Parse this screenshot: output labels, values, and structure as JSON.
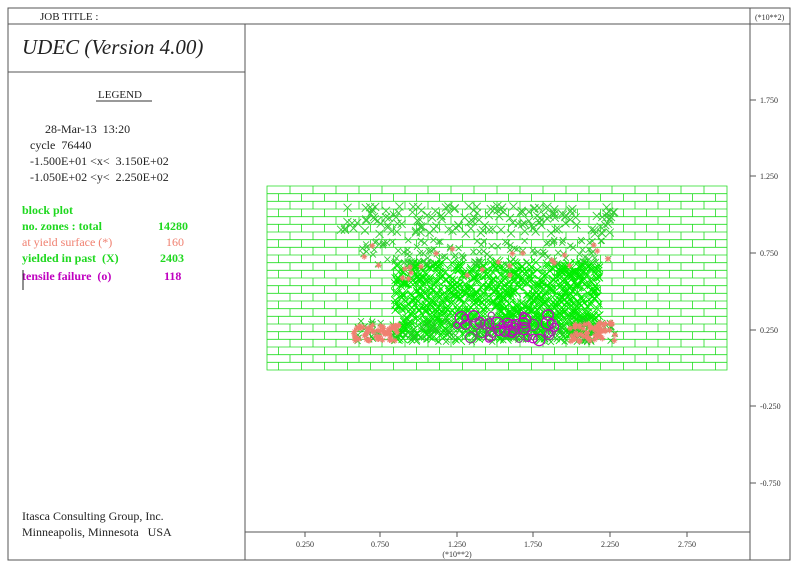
{
  "header": {
    "job_title": "JOB TITLE :",
    "title": "UDEC (Version 4.00)"
  },
  "legend": {
    "heading": "LEGEND",
    "date": "28-Mar-13  13:20",
    "cycle": "cycle  76440",
    "x_range": "-1.500E+01 <x<  3.150E+02",
    "y_range": "-1.050E+02 <y<  2.250E+02",
    "plot": "block plot",
    "items": [
      {
        "label": "no. zones : total",
        "value": "14280"
      },
      {
        "label": "at yield surface (*)",
        "value": "160"
      },
      {
        "label": "yielded in past  (X)",
        "value": "2403"
      },
      {
        "label": "tensile failure  (o)",
        "value": "118"
      }
    ]
  },
  "footer": {
    "company": "Itasca Consulting Group, Inc.",
    "location": "Minneapolis, Minnesota   USA"
  },
  "axes": {
    "x_scale": "(*10**2)",
    "y_scale": "(*10**2)",
    "x_ticks": [
      "0.250",
      "0.750",
      "1.250",
      "1.750",
      "2.250",
      "2.750"
    ],
    "y_ticks": [
      "1.750",
      "1.250",
      "0.750",
      "0.250",
      "-0.250",
      "-0.750"
    ]
  }
}
